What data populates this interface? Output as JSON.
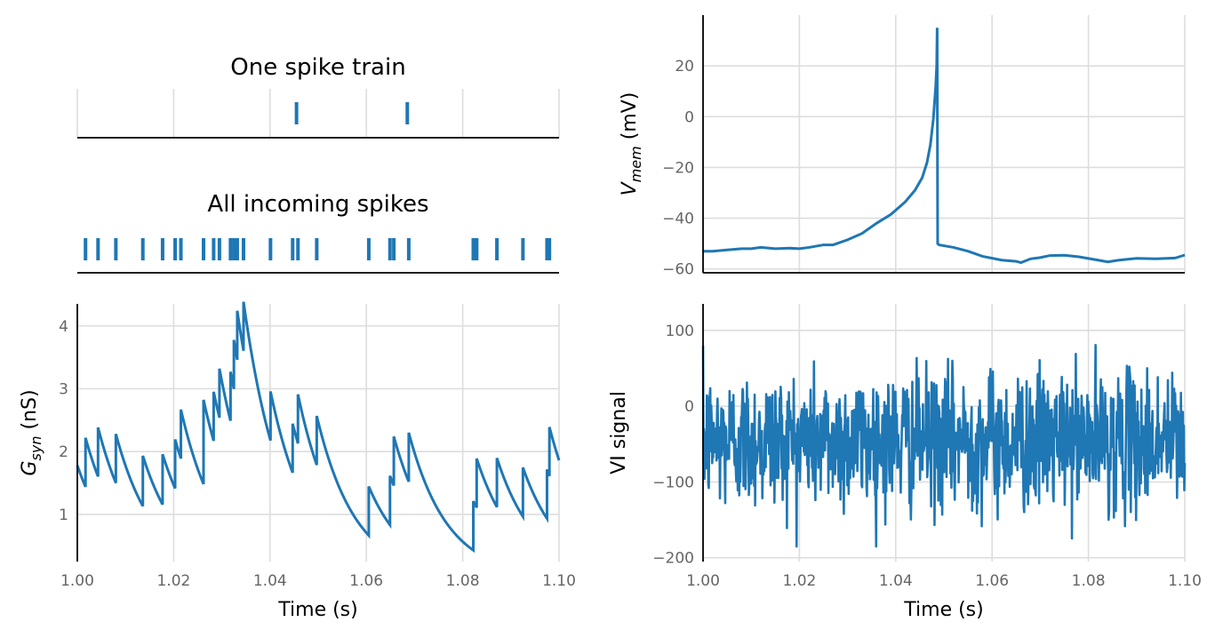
{
  "colors": {
    "series": "#1f77b4",
    "grid": "#dddddd",
    "tick": "#666666",
    "axis": "#000000"
  },
  "chart_data": [
    {
      "id": "one-spike-train",
      "type": "event",
      "title": "One spike train",
      "xlim": [
        1.0,
        1.1
      ],
      "grid": true,
      "spikes": [
        1.0455,
        1.0685
      ]
    },
    {
      "id": "all-incoming-spikes",
      "type": "event",
      "title": "All incoming spikes",
      "xlim": [
        1.0,
        1.1
      ],
      "grid": false,
      "spikes": [
        1.0017,
        1.0043,
        1.008,
        1.0136,
        1.0177,
        1.0203,
        1.0215,
        1.0262,
        1.0283,
        1.0295,
        1.0318,
        1.0325,
        1.0332,
        1.0345,
        1.0401,
        1.0447,
        1.0458,
        1.0497,
        1.0605,
        1.0649,
        1.0657,
        1.0688,
        1.0822,
        1.0829,
        1.0871,
        1.0925,
        1.0975,
        1.098
      ]
    },
    {
      "id": "gsyn",
      "type": "line",
      "xlabel": "Time (s)",
      "ylabel": "G_syn (nS)",
      "ylabel_base": "G",
      "ylabel_sub": "syn",
      "ylabel_suffix": " (nS)",
      "xlim": [
        1.0,
        1.1
      ],
      "ylim": [
        0.25,
        4.35
      ],
      "xticks": [
        "1.00",
        "1.02",
        "1.04",
        "1.06",
        "1.08",
        "1.10"
      ],
      "yticks": [
        "1",
        "2",
        "3",
        "4"
      ],
      "tau": 0.008,
      "start_value": 1.78,
      "jumps": [
        [
          1.0017,
          0.78
        ],
        [
          1.0043,
          0.78
        ],
        [
          1.008,
          0.78
        ],
        [
          1.0136,
          0.8
        ],
        [
          1.0177,
          0.8
        ],
        [
          1.0203,
          0.78
        ],
        [
          1.0215,
          0.78
        ],
        [
          1.0262,
          1.34
        ],
        [
          1.0283,
          0.78
        ],
        [
          1.0295,
          0.78
        ],
        [
          1.0318,
          0.78
        ],
        [
          1.0325,
          0.78
        ],
        [
          1.0332,
          0.78
        ],
        [
          1.0345,
          0.78
        ],
        [
          1.0401,
          0.78
        ],
        [
          1.0447,
          0.78
        ],
        [
          1.0458,
          0.78
        ],
        [
          1.0497,
          0.78
        ],
        [
          1.0605,
          0.78
        ],
        [
          1.0649,
          0.78
        ],
        [
          1.0657,
          0.78
        ],
        [
          1.0688,
          0.78
        ],
        [
          1.0822,
          0.78
        ],
        [
          1.0829,
          0.78
        ],
        [
          1.0871,
          0.78
        ],
        [
          1.0925,
          0.78
        ],
        [
          1.0975,
          0.78
        ],
        [
          1.098,
          0.78
        ]
      ]
    },
    {
      "id": "vmem",
      "type": "line",
      "ylabel": "V_mem (mV)",
      "ylabel_base": "V",
      "ylabel_sub": "mem",
      "ylabel_suffix": " (mV)",
      "xlim": [
        1.0,
        1.1
      ],
      "ylim": [
        -61.5,
        40
      ],
      "yticks": [
        "−60",
        "−40",
        "−20",
        "0",
        "20"
      ],
      "x": [
        1.0,
        1.002,
        1.005,
        1.008,
        1.01,
        1.012,
        1.015,
        1.018,
        1.02,
        1.022,
        1.025,
        1.027,
        1.03,
        1.033,
        1.036,
        1.039,
        1.042,
        1.044,
        1.0455,
        1.0465,
        1.0472,
        1.0478,
        1.0483,
        1.0485,
        1.0486,
        1.0487,
        1.049,
        1.052,
        1.055,
        1.058,
        1.062,
        1.065,
        1.066,
        1.068,
        1.07,
        1.072,
        1.075,
        1.078,
        1.082,
        1.084,
        1.086,
        1.09,
        1.094,
        1.098,
        1.1
      ],
      "y": [
        -53,
        -53,
        -52.5,
        -52,
        -52,
        -51.5,
        -52,
        -51.8,
        -52,
        -51.5,
        -50.5,
        -50.5,
        -48.5,
        -46,
        -42,
        -38.5,
        -33.5,
        -29,
        -24,
        -18,
        -11,
        -1,
        12,
        20,
        35,
        -50,
        -50.5,
        -51.5,
        -53,
        -55,
        -56.5,
        -57,
        -57.5,
        -56,
        -55.5,
        -54.7,
        -54.6,
        -55.2,
        -56.5,
        -57.2,
        -56.6,
        -55.8,
        -56,
        -55.7,
        -54.5
      ]
    },
    {
      "id": "vi",
      "type": "line",
      "xlabel": "Time (s)",
      "ylabel": "VI signal",
      "xlim": [
        1.0,
        1.1
      ],
      "ylim": [
        -205,
        135
      ],
      "xticks": [
        "1.00",
        "1.02",
        "1.04",
        "1.06",
        "1.08",
        "1.10"
      ],
      "yticks": [
        "−200",
        "−100",
        "0",
        "100"
      ],
      "noise": {
        "samples": 1000,
        "mean": -45,
        "std": 45,
        "min": -185,
        "max": 115,
        "seed": 12345
      }
    }
  ]
}
